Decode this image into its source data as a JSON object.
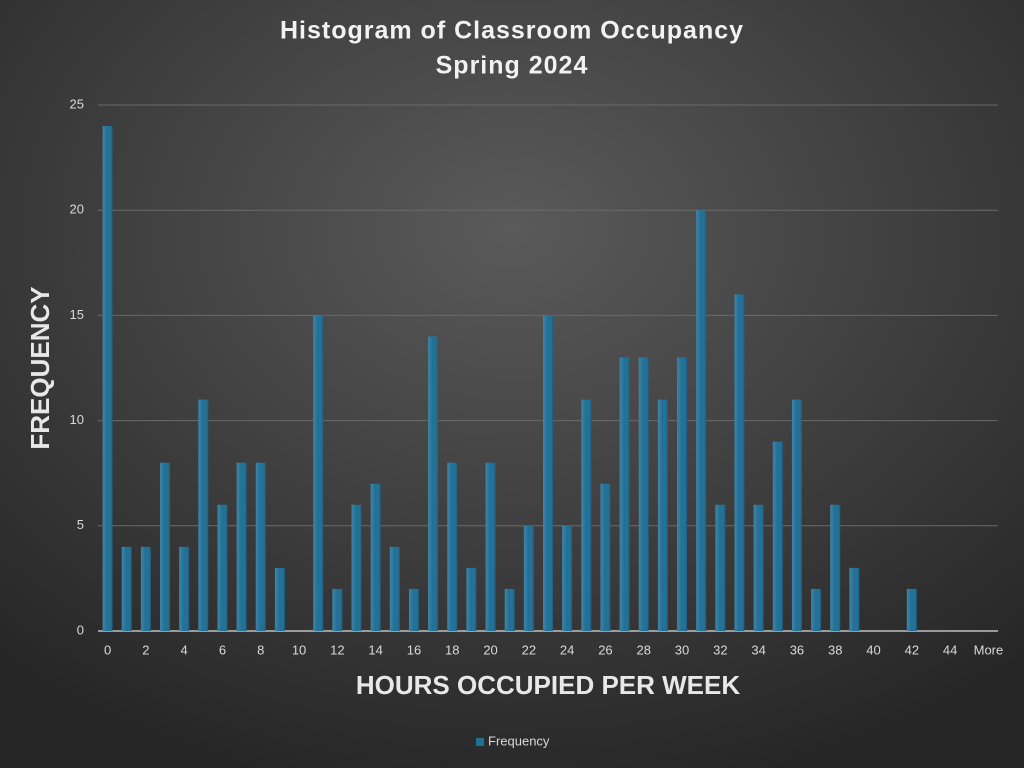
{
  "chart_data": {
    "type": "bar",
    "title": "Histogram of Classroom Occupancy",
    "subtitle": "Spring 2024",
    "x_label": "HOURS OCCUPIED PER WEEK",
    "y_label": "FREQUENCY",
    "categories": [
      "0",
      null,
      "2",
      null,
      "4",
      null,
      "6",
      null,
      "8",
      null,
      "10",
      null,
      "12",
      null,
      "14",
      null,
      "16",
      null,
      "18",
      null,
      "20",
      null,
      "22",
      null,
      "24",
      null,
      "26",
      null,
      "28",
      null,
      "30",
      null,
      "32",
      null,
      "34",
      null,
      "36",
      null,
      "38",
      null,
      "40",
      null,
      "42",
      null,
      "44",
      null,
      "More"
    ],
    "series": [
      {
        "name": "Frequency",
        "color": "#1f6f96",
        "values": [
          24,
          4,
          4,
          8,
          4,
          11,
          6,
          8,
          8,
          3,
          0,
          15,
          2,
          6,
          7,
          4,
          2,
          14,
          8,
          3,
          8,
          2,
          5,
          15,
          5,
          11,
          7,
          13,
          13,
          11,
          13,
          20,
          6,
          16,
          6,
          9,
          11,
          2,
          6,
          3,
          0,
          0,
          2,
          0,
          0,
          0,
          0
        ]
      }
    ],
    "ylim": [
      0,
      25
    ],
    "yticks": [
      0,
      5,
      10,
      15,
      20,
      25
    ],
    "grid": true,
    "legend": "bottom"
  }
}
